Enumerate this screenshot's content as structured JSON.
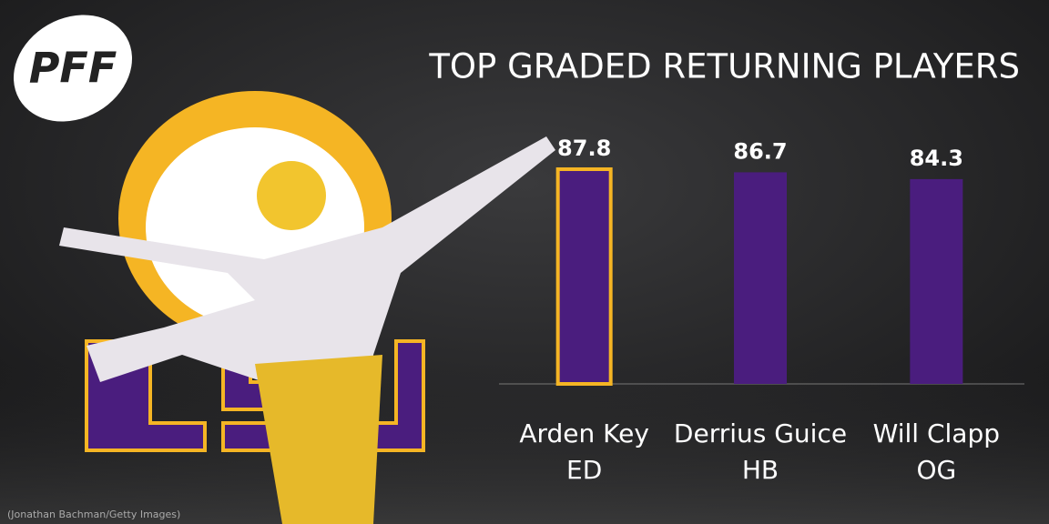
{
  "logo": "PFF",
  "credit": "(Jonathan Bachman/Getty Images)",
  "chart_data": {
    "type": "bar",
    "title": "TOP GRADED RETURNING PLAYERS",
    "categories": [
      "Arden Key",
      "Derrius Guice",
      "Will Clapp"
    ],
    "positions": [
      "ED",
      "HB",
      "OG"
    ],
    "values": [
      87.8,
      86.7,
      84.3
    ],
    "color": "#4a1d7e",
    "highlight_index": 0,
    "highlight_color": "#f5b524",
    "ylim": [
      12,
      100
    ]
  }
}
